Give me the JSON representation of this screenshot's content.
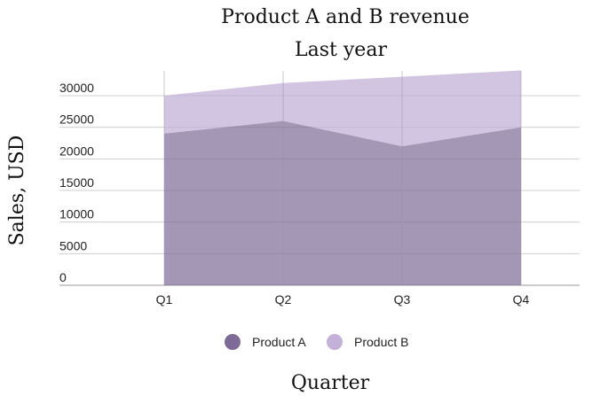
{
  "chart_data": {
    "type": "area",
    "title": "Product A and B revenue",
    "subtitle": "Last year",
    "xlabel": "Quarter",
    "ylabel": "Sales, USD",
    "categories": [
      "Q1",
      "Q2",
      "Q3",
      "Q4"
    ],
    "yticks": [
      0,
      5000,
      10000,
      15000,
      20000,
      25000,
      30000
    ],
    "ylim": [
      0,
      32000
    ],
    "stacked": true,
    "grid": true,
    "legend_position": "bottom",
    "series": [
      {
        "name": "Product A",
        "values": [
          24000,
          26000,
          22000,
          25000
        ],
        "color": "#7e6a96"
      },
      {
        "name": "Product B",
        "values": [
          6000,
          6000,
          11000,
          9000
        ],
        "color": "#c3b1d8"
      }
    ]
  }
}
